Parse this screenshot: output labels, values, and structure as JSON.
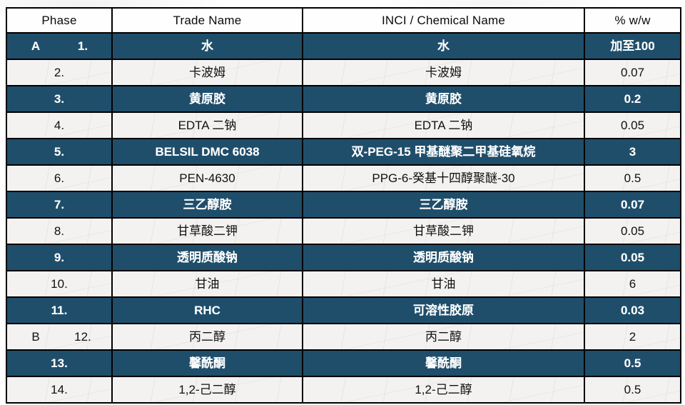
{
  "table": {
    "columns": [
      "Phase",
      "Trade Name",
      "INCI / Chemical Name",
      "% w/w"
    ],
    "rows": [
      {
        "phase": "A",
        "num": "1.",
        "trade": "水",
        "inci": "水",
        "pct": "加至100"
      },
      {
        "phase": "",
        "num": "2.",
        "trade": "卡波姆",
        "inci": "卡波姆",
        "pct": "0.07"
      },
      {
        "phase": "",
        "num": "3.",
        "trade": "黄原胶",
        "inci": "黄原胶",
        "pct": "0.2"
      },
      {
        "phase": "",
        "num": "4.",
        "trade": "EDTA 二钠",
        "inci": "EDTA 二钠",
        "pct": "0.05"
      },
      {
        "phase": "",
        "num": "5.",
        "trade": "BELSIL DMC 6038",
        "inci": "双-PEG-15 甲基醚聚二甲基硅氧烷",
        "pct": "3"
      },
      {
        "phase": "",
        "num": "6.",
        "trade": "PEN-4630",
        "inci": "PPG-6-癸基十四醇聚醚-30",
        "pct": "0.5"
      },
      {
        "phase": "",
        "num": "7.",
        "trade": "三乙醇胺",
        "inci": "三乙醇胺",
        "pct": "0.07"
      },
      {
        "phase": "",
        "num": "8.",
        "trade": "甘草酸二钾",
        "inci": "甘草酸二钾",
        "pct": "0.05"
      },
      {
        "phase": "",
        "num": "9.",
        "trade": "透明质酸钠",
        "inci": "透明质酸钠",
        "pct": "0.05"
      },
      {
        "phase": "",
        "num": "10.",
        "trade": "甘油",
        "inci": "甘油",
        "pct": "6"
      },
      {
        "phase": "",
        "num": "11.",
        "trade": "RHC",
        "inci": "可溶性胶原",
        "pct": "0.03"
      },
      {
        "phase": "B",
        "num": "12.",
        "trade": "丙二醇",
        "inci": "丙二醇",
        "pct": "2"
      },
      {
        "phase": "",
        "num": "13.",
        "trade": "馨酰酮",
        "inci": "馨酰酮",
        "pct": "0.5"
      },
      {
        "phase": "",
        "num": "14.",
        "trade": "1,2-己二醇",
        "inci": "1,2-己二醇",
        "pct": "0.5"
      }
    ],
    "colors": {
      "dark_row_bg": "#1F4E6B",
      "dark_row_text": "#FFFFFF",
      "light_row_bg": "#F3F2F0",
      "light_row_text": "#111111",
      "border": "#000000",
      "header_bg": "#FEFEFE"
    }
  }
}
